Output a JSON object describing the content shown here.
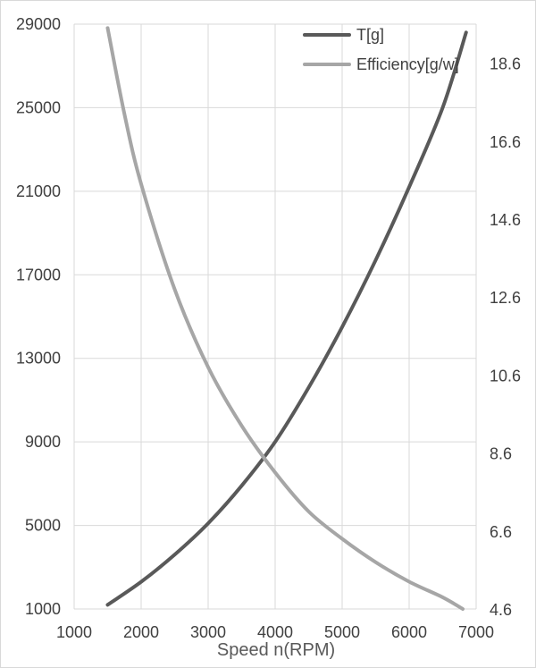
{
  "chart_data": {
    "type": "line",
    "title": "",
    "xlabel": "Speed n(RPM)",
    "ylabel": "",
    "y2label": "",
    "xlim": [
      1000,
      7000
    ],
    "ylim": [
      1000,
      29000
    ],
    "y2lim": [
      4.6,
      19.6
    ],
    "x_ticks": [
      "1000",
      "2000",
      "3000",
      "4000",
      "5000",
      "6000",
      "7000"
    ],
    "y_ticks": [
      "1000",
      "5000",
      "9000",
      "13000",
      "17000",
      "21000",
      "25000",
      "29000"
    ],
    "y2_ticks": [
      "4.6",
      "6.6",
      "8.6",
      "10.6",
      "12.6",
      "14.6",
      "16.6",
      "18.6"
    ],
    "grid": true,
    "legend": "top-right",
    "series": [
      {
        "name": "T[g]",
        "axis": "left",
        "color": "#595959",
        "x": [
          1500,
          2000,
          2500,
          3000,
          3500,
          4000,
          4500,
          5000,
          5500,
          6000,
          6500,
          6850
        ],
        "y": [
          1200,
          2300,
          3600,
          5100,
          6900,
          9000,
          11600,
          14500,
          17700,
          21200,
          25000,
          28600
        ]
      },
      {
        "name": "Efficiency[g/w]",
        "axis": "right",
        "color": "#a6a6a6",
        "x": [
          1500,
          1750,
          2000,
          2500,
          3000,
          3500,
          4000,
          4500,
          5000,
          5500,
          6000,
          6500,
          6800
        ],
        "y": [
          19.5,
          17.3,
          15.5,
          12.8,
          10.8,
          9.3,
          8.1,
          7.1,
          6.4,
          5.8,
          5.3,
          4.9,
          4.6
        ]
      }
    ]
  }
}
